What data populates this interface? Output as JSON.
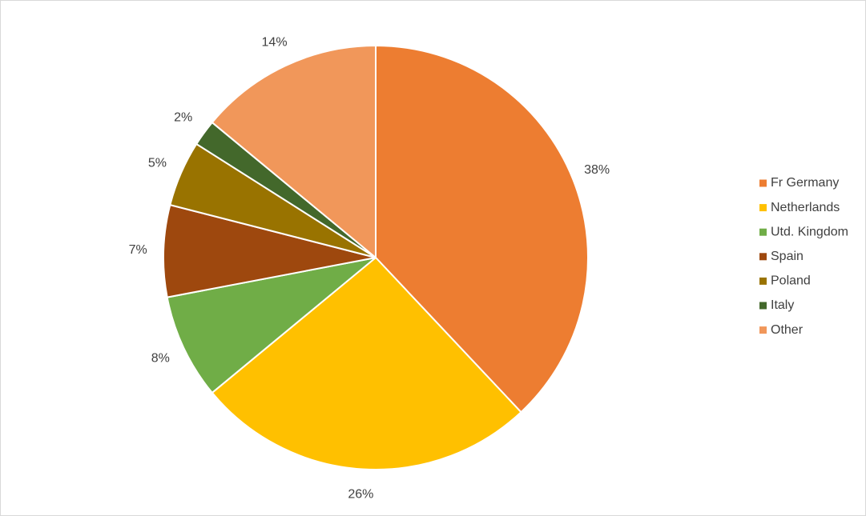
{
  "chart_data": {
    "type": "pie",
    "categories": [
      "Fr Germany",
      "Netherlands",
      "Utd. Kingdom",
      "Spain",
      "Poland",
      "Italy",
      "Other"
    ],
    "values": [
      38,
      26,
      8,
      7,
      5,
      2,
      14
    ],
    "value_labels": [
      "38%",
      "26%",
      "8%",
      "7%",
      "5%",
      "2%",
      "14%"
    ],
    "colors": [
      "#ED7D31",
      "#FFC000",
      "#70AD47",
      "#9E480E",
      "#997300",
      "#43682B",
      "#F1975A"
    ],
    "legend": "right"
  }
}
